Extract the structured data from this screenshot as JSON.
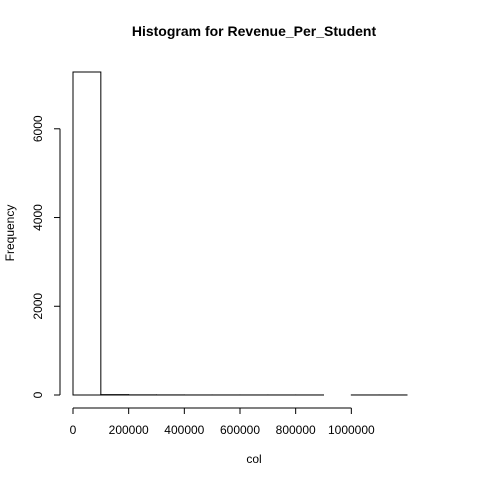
{
  "chart_data": {
    "type": "bar",
    "title": "Histogram for  Revenue_Per_Student",
    "xlabel": "col",
    "ylabel": "Frequency",
    "bin_width": 100000,
    "bins": [
      {
        "start": 0,
        "end": 100000,
        "count": 7280
      },
      {
        "start": 100000,
        "end": 200000,
        "count": 8
      },
      {
        "start": 200000,
        "end": 300000,
        "count": 3
      },
      {
        "start": 300000,
        "end": 400000,
        "count": 2
      },
      {
        "start": 400000,
        "end": 500000,
        "count": 1
      },
      {
        "start": 500000,
        "end": 600000,
        "count": 1
      },
      {
        "start": 600000,
        "end": 700000,
        "count": 1
      },
      {
        "start": 700000,
        "end": 800000,
        "count": 1
      },
      {
        "start": 800000,
        "end": 900000,
        "count": 1
      },
      {
        "start": 900000,
        "end": 1000000,
        "count": 0
      },
      {
        "start": 1000000,
        "end": 1100000,
        "count": 1
      },
      {
        "start": 1100000,
        "end": 1200000,
        "count": 1
      }
    ],
    "xlim": [
      0,
      1200000
    ],
    "ylim": [
      0,
      7280
    ],
    "x_ticks": [
      0,
      200000,
      400000,
      600000,
      800000,
      1000000
    ],
    "x_tick_labels": [
      "0",
      "200000",
      "400000",
      "600000",
      "800000",
      "1000000"
    ],
    "y_ticks": [
      0,
      2000,
      4000,
      6000
    ],
    "y_tick_labels": [
      "0",
      "2000",
      "4000",
      "6000"
    ],
    "grid": false,
    "legend": "none"
  }
}
